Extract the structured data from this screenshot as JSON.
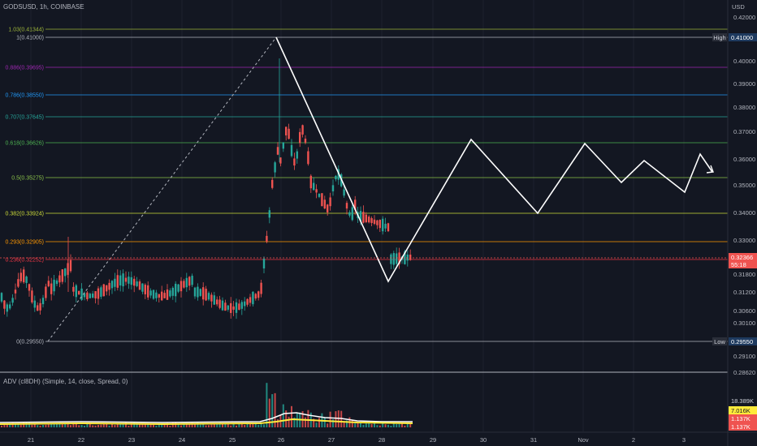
{
  "header": {
    "symbol": "GODSUSD, 1h, COINBASE"
  },
  "price_axis": {
    "currency": "USD",
    "ticks": [
      "0.42000",
      "0.41000",
      "0.40000",
      "0.39000",
      "0.38000",
      "0.37000",
      "0.36000",
      "0.35000",
      "0.34000",
      "0.33000",
      "0.31800",
      "0.31200",
      "0.30600",
      "0.30100",
      "0.29550",
      "0.29100",
      "0.28620"
    ]
  },
  "time_axis": {
    "ticks": [
      "21",
      "22",
      "23",
      "24",
      "25",
      "26",
      "27",
      "28",
      "29",
      "30",
      "31",
      "Nov",
      "2",
      "3"
    ]
  },
  "fib_levels": [
    {
      "label": "1.03(0.41344)",
      "color": "#9bb33a"
    },
    {
      "label": "1(0.41000)",
      "color": "#b2b5be"
    },
    {
      "label": "0.886(0.39695)",
      "color": "#9c27b0"
    },
    {
      "label": "0.786(0.38550)",
      "color": "#2196f3"
    },
    {
      "label": "0.707(0.37645)",
      "color": "#26a69a"
    },
    {
      "label": "0.618(0.36626)",
      "color": "#4caf50"
    },
    {
      "label": "0.5(0.35275)",
      "color": "#8bc34a"
    },
    {
      "label": "0.382(0.33924)",
      "color": "#cddc39"
    },
    {
      "label": "0.293(0.32905)",
      "color": "#ff9800"
    },
    {
      "label": "0.236(0.32252)",
      "color": "#f23645"
    },
    {
      "label": "0(0.29550)",
      "color": "#b2b5be"
    }
  ],
  "badges": {
    "high_label": "High",
    "high_value": "0.41000",
    "low_label": "Low",
    "low_value": "0.29550",
    "current_price": "0.32366",
    "countdown": "55:18"
  },
  "indicator": {
    "title": "ADV (cl8DH) (Simple, 14, close, Spread, 0)",
    "badges": [
      "18.389K",
      "7.016K",
      "1.137K",
      "1.137K"
    ]
  },
  "colors": {
    "bg": "#131722",
    "up": "#26a69a",
    "down": "#ef5350",
    "projection": "#ffffff",
    "grid": "#2a2e39"
  }
}
